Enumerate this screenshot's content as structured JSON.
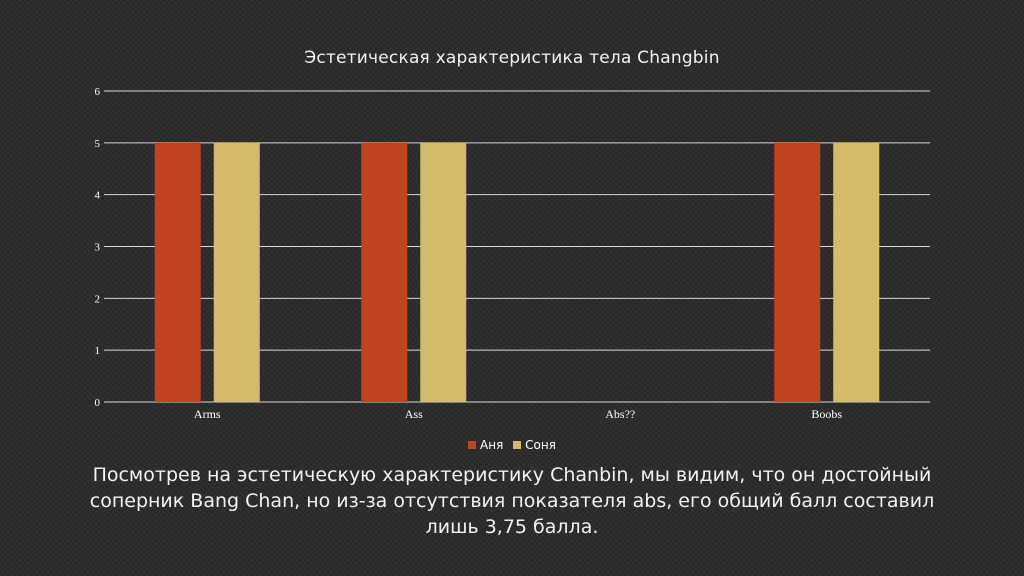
{
  "slide": {
    "caption": "Посмотрев на эстетическую характеристику Chanbin, мы видим, что он достойный соперник Bang Chan, но из-за отсутствия показателя abs, его общий балл составил лишь 3,75 балла."
  },
  "colors": {
    "series_1": "#c0441c",
    "series_2": "#d4bb6a",
    "gridline": "#d9d9d9",
    "text": "#ffffff"
  },
  "chart_data": {
    "type": "bar",
    "title": "Эстетическая характеристика тела Changbin",
    "categories": [
      "Arms",
      "Ass",
      "Abs??",
      "Boobs"
    ],
    "series": [
      {
        "name": "Аня",
        "values": [
          5,
          5,
          null,
          5
        ]
      },
      {
        "name": "Соня",
        "values": [
          5,
          5,
          null,
          5
        ]
      }
    ],
    "ylim": [
      0,
      6
    ],
    "yticks": [
      "0",
      "1",
      "2",
      "3",
      "4",
      "5",
      "6"
    ],
    "grid": true,
    "legend": "bottom"
  }
}
